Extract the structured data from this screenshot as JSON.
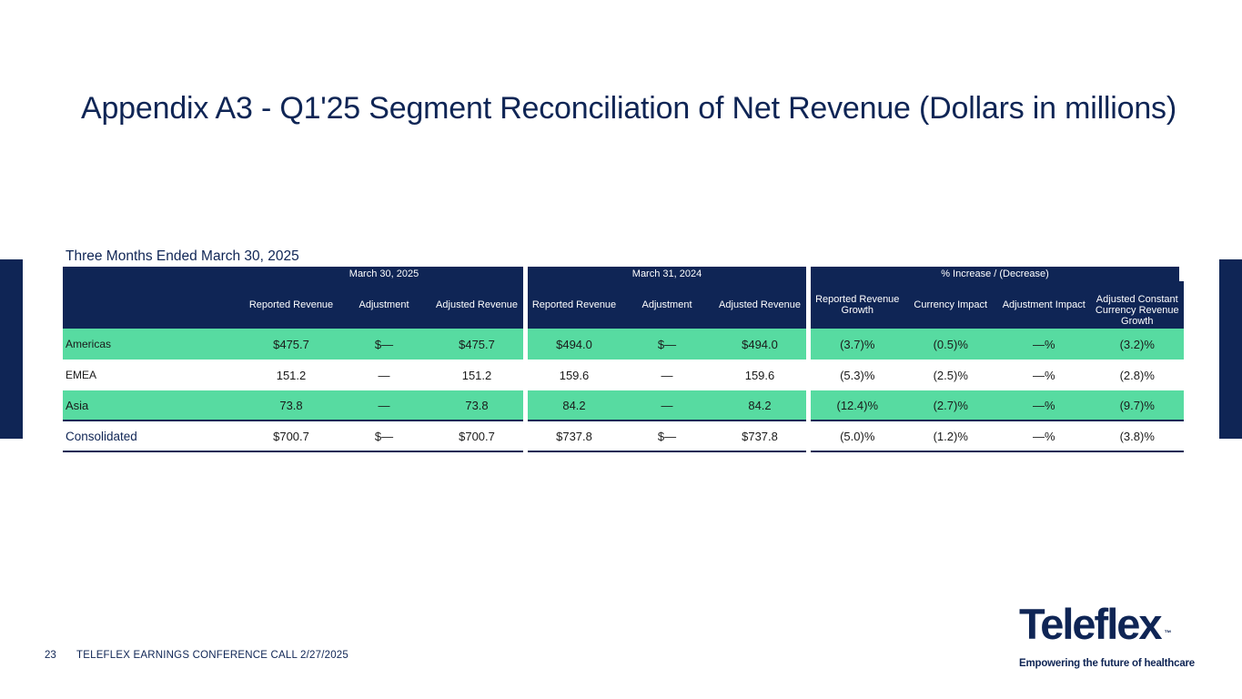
{
  "title": "Appendix A3 - Q1'25 Segment Reconciliation of Net Revenue (Dollars in millions)",
  "subtitle": "Three Months Ended March 30, 2025",
  "table": {
    "group_headers": [
      "March 30, 2025",
      "March 31, 2024",
      "% Increase / (Decrease)"
    ],
    "col_headers": [
      "Reported Revenue",
      "Adjustment",
      "Adjusted Revenue",
      "Reported Revenue",
      "Adjustment",
      "Adjusted Revenue",
      "Reported Revenue Growth",
      "Currency Impact",
      "Adjustment Impact",
      "Adjusted Constant Currency Revenue Growth"
    ],
    "rows": [
      {
        "label": "Americas",
        "values": [
          "$475.7",
          "$—",
          "$475.7",
          "$494.0",
          "$—",
          "$494.0",
          "(3.7)%",
          "(0.5)%",
          "—%",
          "(3.2)%"
        ]
      },
      {
        "label": "EMEA",
        "values": [
          "151.2",
          "—",
          "151.2",
          "159.6",
          "—",
          "159.6",
          "(5.3)%",
          "(2.5)%",
          "—%",
          "(2.8)%"
        ]
      },
      {
        "label": "Asia",
        "values": [
          "73.8",
          "—",
          "73.8",
          "84.2",
          "—",
          "84.2",
          "(12.4)%",
          "(2.7)%",
          "—%",
          "(9.7)%"
        ]
      },
      {
        "label": "Consolidated",
        "values": [
          "$700.7",
          "$—",
          "$700.7",
          "$737.8",
          "$—",
          "$737.8",
          "(5.0)%",
          "(1.2)%",
          "—%",
          "(3.8)%"
        ]
      }
    ]
  },
  "footer": {
    "page_number": "23",
    "text": "TELEFLEX EARNINGS CONFERENCE CALL 2/27/2025"
  },
  "logo": {
    "wordmark": "Teleflex",
    "trademark": "™",
    "tagline": "Empowering the future of healthcare"
  },
  "colors": {
    "navy": "#0f2555",
    "green": "#57dba1"
  }
}
